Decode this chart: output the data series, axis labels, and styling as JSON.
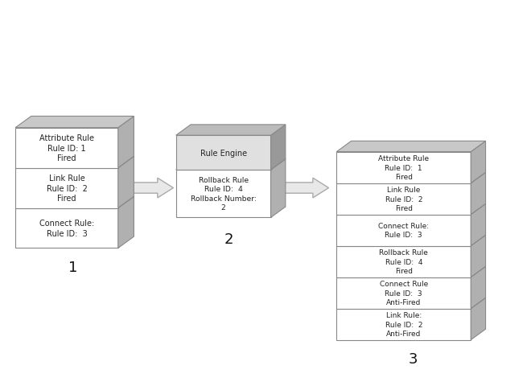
{
  "bg_color": "#ffffff",
  "stack1": [
    "Connect Rule:\nRule ID:  3",
    "Link Rule\nRule ID:  2\nFired",
    "Attribute Rule\nRule ID: 1\nFired"
  ],
  "stack2_top": "Rule Engine",
  "stack2_bottom": "Rollback Rule\nRule ID:  4\nRollback Number:\n2",
  "stack3": [
    "Link Rule:\nRule ID:  2\nAnti-Fired",
    "Connect Rule\nRule ID:  3\nAnti-Fired",
    "Rollback Rule\nRule ID:  4\nFired",
    "Connect Rule:\nRule ID:  3",
    "Link Rule\nRule ID:  2\nFired",
    "Attribute Rule\nRule ID:  1\nFired"
  ],
  "text_fontsize": 7.0,
  "label_fontsize": 13,
  "face_color": "#ffffff",
  "side_color": "#b0b0b0",
  "top_color": "#c8c8c8",
  "edge_color": "#888888",
  "arrow_face": "#e8e8e8",
  "arrow_edge": "#aaaaaa",
  "engine_top_face": "#e0e0e0",
  "engine_top_side": "#999999",
  "engine_top_top": "#bbbbbb"
}
